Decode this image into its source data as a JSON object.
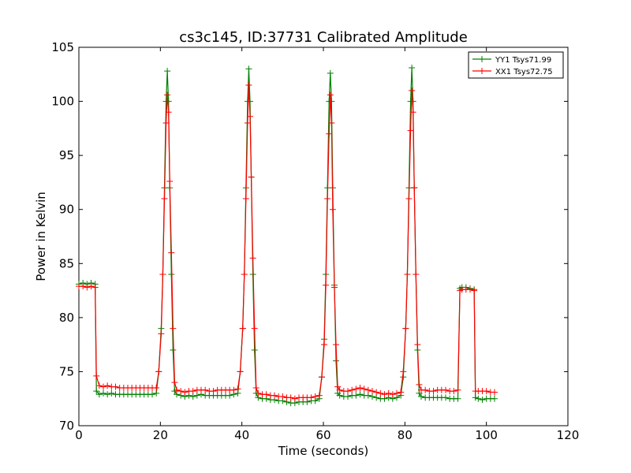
{
  "chart_data": {
    "type": "line",
    "title": "cs3c145, ID:37731 Calibrated Amplitude",
    "xlabel": "Time (seconds)",
    "ylabel": "Power in Kelvin",
    "xlim": [
      0,
      120
    ],
    "ylim": [
      70,
      105
    ],
    "x_ticks": [
      0,
      20,
      40,
      60,
      80,
      100,
      120
    ],
    "y_ticks": [
      70,
      75,
      80,
      85,
      90,
      95,
      100,
      105
    ],
    "x_tick_labels": [
      "0",
      "20",
      "40",
      "60",
      "80",
      "100",
      "120"
    ],
    "y_tick_labels": [
      "70",
      "75",
      "80",
      "85",
      "90",
      "95",
      "100",
      "105"
    ],
    "grid": false,
    "legend_position": "top-right",
    "marker": "plus",
    "series": [
      {
        "name": "YY1 Tsys71.99",
        "color": "#008000",
        "points": [
          [
            0,
            83.1
          ],
          [
            1,
            83.2
          ],
          [
            2,
            83.1
          ],
          [
            3,
            83.2
          ],
          [
            4,
            83.1
          ],
          [
            4.3,
            73.2
          ],
          [
            5,
            72.9
          ],
          [
            6,
            73.0
          ],
          [
            7,
            72.9
          ],
          [
            8,
            73.0
          ],
          [
            9,
            72.9
          ],
          [
            10,
            72.9
          ],
          [
            11,
            72.9
          ],
          [
            12,
            72.9
          ],
          [
            13,
            72.9
          ],
          [
            14,
            72.9
          ],
          [
            15,
            72.9
          ],
          [
            16,
            72.9
          ],
          [
            17,
            72.9
          ],
          [
            18,
            72.9
          ],
          [
            19,
            73.0
          ],
          [
            19.6,
            75.0
          ],
          [
            20.2,
            79.0
          ],
          [
            20.6,
            84.0
          ],
          [
            21,
            92.0
          ],
          [
            21.4,
            100.0
          ],
          [
            21.7,
            102.8
          ],
          [
            22,
            100.0
          ],
          [
            22.3,
            92.0
          ],
          [
            22.7,
            84.0
          ],
          [
            23.1,
            77.0
          ],
          [
            23.5,
            73.2
          ],
          [
            24,
            72.9
          ],
          [
            25,
            72.8
          ],
          [
            26,
            72.7
          ],
          [
            27,
            72.8
          ],
          [
            28,
            72.7
          ],
          [
            29,
            72.8
          ],
          [
            30,
            72.9
          ],
          [
            31,
            72.8
          ],
          [
            32,
            72.8
          ],
          [
            33,
            72.8
          ],
          [
            34,
            72.8
          ],
          [
            35,
            72.8
          ],
          [
            36,
            72.8
          ],
          [
            37,
            72.8
          ],
          [
            38,
            72.9
          ],
          [
            39,
            73.0
          ],
          [
            39.6,
            75.0
          ],
          [
            40.2,
            79.0
          ],
          [
            40.6,
            84.0
          ],
          [
            41,
            92.0
          ],
          [
            41.4,
            100.0
          ],
          [
            41.7,
            103.0
          ],
          [
            42,
            100.0
          ],
          [
            42.3,
            93.0
          ],
          [
            42.7,
            84.0
          ],
          [
            43.1,
            77.0
          ],
          [
            43.5,
            73.0
          ],
          [
            44,
            72.6
          ],
          [
            45,
            72.5
          ],
          [
            46,
            72.5
          ],
          [
            47,
            72.4
          ],
          [
            48,
            72.4
          ],
          [
            49,
            72.3
          ],
          [
            50,
            72.3
          ],
          [
            51,
            72.2
          ],
          [
            52,
            72.1
          ],
          [
            53,
            72.1
          ],
          [
            54,
            72.2
          ],
          [
            55,
            72.2
          ],
          [
            56,
            72.2
          ],
          [
            57,
            72.3
          ],
          [
            58,
            72.3
          ],
          [
            59,
            72.5
          ],
          [
            59.6,
            74.5
          ],
          [
            60.2,
            78.0
          ],
          [
            60.6,
            84.0
          ],
          [
            61,
            92.0
          ],
          [
            61.4,
            100.0
          ],
          [
            61.7,
            102.6
          ],
          [
            62,
            100.0
          ],
          [
            62.3,
            92.0
          ],
          [
            62.7,
            83.0
          ],
          [
            63.1,
            76.0
          ],
          [
            63.5,
            73.0
          ],
          [
            64,
            72.8
          ],
          [
            65,
            72.7
          ],
          [
            66,
            72.7
          ],
          [
            67,
            72.8
          ],
          [
            68,
            72.8
          ],
          [
            69,
            72.9
          ],
          [
            70,
            72.8
          ],
          [
            71,
            72.8
          ],
          [
            72,
            72.7
          ],
          [
            73,
            72.6
          ],
          [
            74,
            72.5
          ],
          [
            75,
            72.5
          ],
          [
            76,
            72.6
          ],
          [
            77,
            72.5
          ],
          [
            78,
            72.6
          ],
          [
            79,
            72.8
          ],
          [
            79.6,
            74.5
          ],
          [
            80.2,
            79.0
          ],
          [
            80.6,
            84.0
          ],
          [
            81,
            92.0
          ],
          [
            81.4,
            100.0
          ],
          [
            81.7,
            103.1
          ],
          [
            82,
            100.0
          ],
          [
            82.3,
            92.0
          ],
          [
            82.7,
            84.0
          ],
          [
            83.1,
            77.0
          ],
          [
            83.5,
            73.0
          ],
          [
            84,
            72.7
          ],
          [
            85,
            72.6
          ],
          [
            86,
            72.6
          ],
          [
            87,
            72.6
          ],
          [
            88,
            72.6
          ],
          [
            89,
            72.6
          ],
          [
            90,
            72.6
          ],
          [
            91,
            72.5
          ],
          [
            92,
            72.5
          ],
          [
            93,
            72.5
          ],
          [
            93.5,
            82.7
          ],
          [
            94,
            82.8
          ],
          [
            95,
            82.8
          ],
          [
            96,
            82.7
          ],
          [
            97,
            82.6
          ],
          [
            97.3,
            72.6
          ],
          [
            98,
            72.5
          ],
          [
            99,
            72.4
          ],
          [
            100,
            72.5
          ],
          [
            101,
            72.5
          ],
          [
            102,
            72.5
          ]
        ]
      },
      {
        "name": "XX1 Tsys72.75",
        "color": "#ff0000",
        "points": [
          [
            0,
            82.9
          ],
          [
            1,
            82.9
          ],
          [
            2,
            82.8
          ],
          [
            3,
            82.9
          ],
          [
            4,
            82.8
          ],
          [
            4.3,
            74.6
          ],
          [
            5,
            73.7
          ],
          [
            6,
            73.6
          ],
          [
            7,
            73.7
          ],
          [
            8,
            73.6
          ],
          [
            9,
            73.6
          ],
          [
            10,
            73.5
          ],
          [
            11,
            73.5
          ],
          [
            12,
            73.5
          ],
          [
            13,
            73.5
          ],
          [
            14,
            73.5
          ],
          [
            15,
            73.5
          ],
          [
            16,
            73.5
          ],
          [
            17,
            73.5
          ],
          [
            18,
            73.5
          ],
          [
            19,
            73.5
          ],
          [
            19.6,
            75.0
          ],
          [
            20.2,
            78.5
          ],
          [
            20.6,
            84.0
          ],
          [
            21,
            91.0
          ],
          [
            21.4,
            98.0
          ],
          [
            21.7,
            100.6
          ],
          [
            22,
            99.0
          ],
          [
            22.3,
            92.6
          ],
          [
            22.7,
            86.0
          ],
          [
            23.1,
            79.0
          ],
          [
            23.5,
            74.0
          ],
          [
            24,
            73.3
          ],
          [
            25,
            73.2
          ],
          [
            26,
            73.1
          ],
          [
            27,
            73.2
          ],
          [
            28,
            73.2
          ],
          [
            29,
            73.3
          ],
          [
            30,
            73.3
          ],
          [
            31,
            73.3
          ],
          [
            32,
            73.2
          ],
          [
            33,
            73.2
          ],
          [
            34,
            73.3
          ],
          [
            35,
            73.3
          ],
          [
            36,
            73.3
          ],
          [
            37,
            73.3
          ],
          [
            38,
            73.3
          ],
          [
            39,
            73.4
          ],
          [
            39.6,
            75.0
          ],
          [
            40.2,
            79.0
          ],
          [
            40.6,
            84.0
          ],
          [
            41,
            91.0
          ],
          [
            41.4,
            98.0
          ],
          [
            41.7,
            101.5
          ],
          [
            42,
            98.6
          ],
          [
            42.3,
            93.0
          ],
          [
            42.7,
            85.5
          ],
          [
            43.1,
            79.0
          ],
          [
            43.5,
            73.5
          ],
          [
            44,
            73.0
          ],
          [
            45,
            72.9
          ],
          [
            46,
            72.9
          ],
          [
            47,
            72.8
          ],
          [
            48,
            72.8
          ],
          [
            49,
            72.7
          ],
          [
            50,
            72.7
          ],
          [
            51,
            72.6
          ],
          [
            52,
            72.6
          ],
          [
            53,
            72.5
          ],
          [
            54,
            72.6
          ],
          [
            55,
            72.6
          ],
          [
            56,
            72.6
          ],
          [
            57,
            72.6
          ],
          [
            58,
            72.7
          ],
          [
            59,
            72.8
          ],
          [
            59.6,
            74.5
          ],
          [
            60.2,
            77.5
          ],
          [
            60.6,
            83.0
          ],
          [
            61,
            91.0
          ],
          [
            61.4,
            97.0
          ],
          [
            61.7,
            100.6
          ],
          [
            62,
            98.0
          ],
          [
            62.3,
            90.0
          ],
          [
            62.7,
            82.8
          ],
          [
            63.1,
            77.5
          ],
          [
            63.5,
            73.6
          ],
          [
            64,
            73.3
          ],
          [
            65,
            73.2
          ],
          [
            66,
            73.2
          ],
          [
            67,
            73.3
          ],
          [
            68,
            73.4
          ],
          [
            69,
            73.5
          ],
          [
            70,
            73.4
          ],
          [
            71,
            73.3
          ],
          [
            72,
            73.2
          ],
          [
            73,
            73.1
          ],
          [
            74,
            73.0
          ],
          [
            75,
            72.9
          ],
          [
            76,
            73.0
          ],
          [
            77,
            72.9
          ],
          [
            78,
            73.0
          ],
          [
            79,
            73.1
          ],
          [
            79.6,
            75.0
          ],
          [
            80.2,
            79.0
          ],
          [
            80.6,
            84.0
          ],
          [
            81,
            91.0
          ],
          [
            81.4,
            97.3
          ],
          [
            81.7,
            101.0
          ],
          [
            82,
            99.0
          ],
          [
            82.3,
            92.0
          ],
          [
            82.7,
            84.0
          ],
          [
            83.1,
            77.5
          ],
          [
            83.5,
            73.8
          ],
          [
            84,
            73.3
          ],
          [
            85,
            73.3
          ],
          [
            86,
            73.2
          ],
          [
            87,
            73.2
          ],
          [
            88,
            73.3
          ],
          [
            89,
            73.3
          ],
          [
            90,
            73.3
          ],
          [
            91,
            73.2
          ],
          [
            92,
            73.2
          ],
          [
            93,
            73.3
          ],
          [
            93.5,
            82.5
          ],
          [
            94,
            82.6
          ],
          [
            95,
            82.6
          ],
          [
            96,
            82.6
          ],
          [
            97,
            82.5
          ],
          [
            97.3,
            73.2
          ],
          [
            98,
            73.2
          ],
          [
            99,
            73.2
          ],
          [
            100,
            73.2
          ],
          [
            101,
            73.1
          ],
          [
            102,
            73.1
          ]
        ]
      }
    ]
  }
}
